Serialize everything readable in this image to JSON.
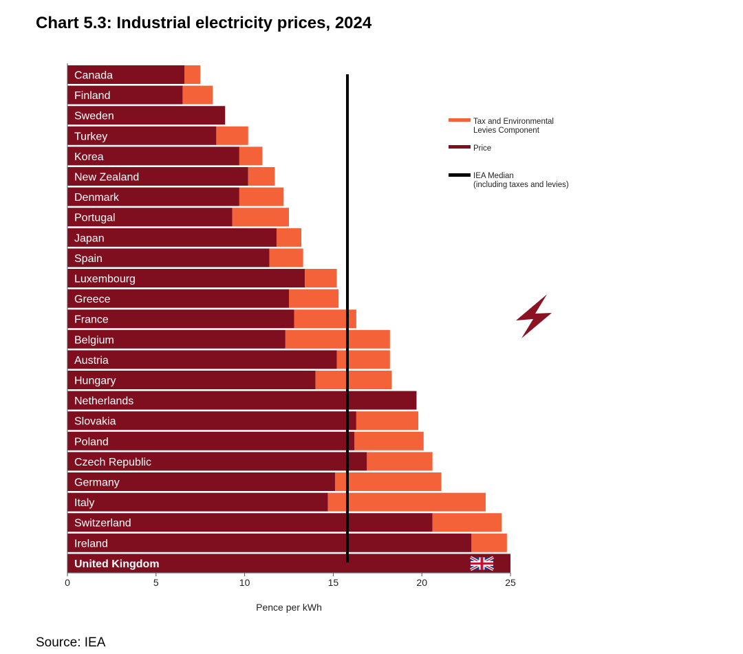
{
  "title": "Chart 5.3: Industrial electricity prices, 2024",
  "source": "Source: IEA",
  "chart_data": {
    "type": "bar",
    "orientation": "horizontal",
    "stacked": true,
    "categories": [
      "Canada",
      "Finland",
      "Sweden",
      "Turkey",
      "Korea",
      "New Zealand",
      "Denmark",
      "Portugal",
      "Japan",
      "Spain",
      "Luxembourg",
      "Greece",
      "France",
      "Belgium",
      "Austria",
      "Hungary",
      "Netherlands",
      "Slovakia",
      "Poland",
      "Czech Republic",
      "Germany",
      "Italy",
      "Switzerland",
      "Ireland",
      "United Kingdom"
    ],
    "series": [
      {
        "name": "Price",
        "color": "#7f0f1e",
        "values": [
          6.6,
          6.5,
          8.9,
          8.4,
          9.7,
          10.2,
          9.7,
          9.3,
          11.8,
          11.4,
          13.4,
          12.5,
          12.8,
          12.3,
          15.2,
          14.0,
          19.7,
          16.3,
          16.2,
          16.9,
          15.1,
          14.7,
          20.6,
          22.8,
          25.0
        ]
      },
      {
        "name": "Tax and Environmental Levies Component",
        "color": "#f4623a",
        "values": [
          0.9,
          1.7,
          0.0,
          1.8,
          1.3,
          1.5,
          2.5,
          3.2,
          1.4,
          1.9,
          1.8,
          2.8,
          3.5,
          5.9,
          3.0,
          4.3,
          0.0,
          3.5,
          3.9,
          3.7,
          6.0,
          8.9,
          3.9,
          2.0,
          0.0
        ]
      }
    ],
    "reference_line": {
      "name": "IEA Median\n(including taxes and levies)",
      "value": 15.8,
      "color": "#000000"
    },
    "legend": [
      {
        "label": "Tax and Environmental Levies Component",
        "color": "#f4623a"
      },
      {
        "label": "Price",
        "color": "#7f0f1e"
      },
      {
        "label": "IEA Median (including taxes and levies)",
        "color": "#000000"
      }
    ],
    "legend_position": "top-right",
    "xlabel": "Pence per kWh",
    "xlim": [
      0,
      25
    ],
    "xticks": [
      0,
      5,
      10,
      15,
      20,
      25
    ],
    "highlight": "United Kingdom"
  },
  "icons": {
    "lightning": "lightning-bolt-icon",
    "flag": "uk-flag-icon"
  }
}
